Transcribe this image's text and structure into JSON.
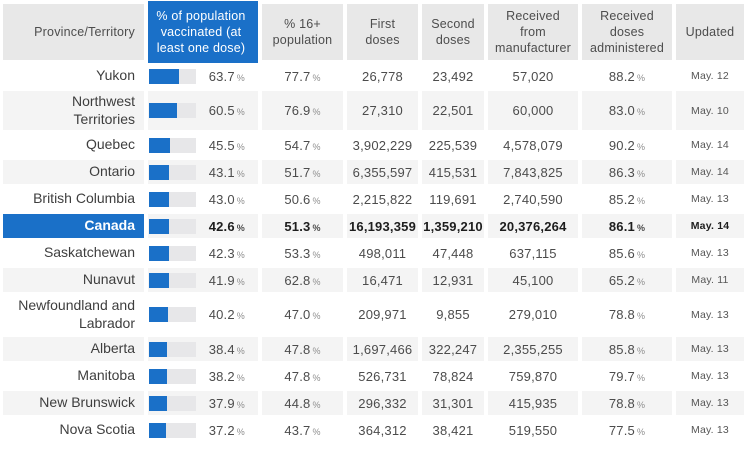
{
  "percent_sign": "%",
  "colors": {
    "accent_blue": "#1a70c8",
    "header_bg": "#e8e8e8",
    "stripe_bg": "#f4f4f4",
    "bar_track": "#e7e7e9"
  },
  "chart_data": {
    "type": "table",
    "columns": [
      "Province/Territory",
      "% of population vaccinated (at least one dose)",
      "% 16+ population",
      "First doses",
      "Second doses",
      "Received from manufacturer",
      "Received doses administered",
      "Updated"
    ],
    "rows": [
      {
        "province": "Yukon",
        "pct_vaccinated": "63.7",
        "pct_16plus": "77.7",
        "first_doses": "26,778",
        "second_doses": "23,492",
        "received_from_manufacturer": "57,020",
        "pct_doses_administered": "88.2",
        "updated": "May. 12",
        "highlight": false
      },
      {
        "province": "Northwest Territories",
        "pct_vaccinated": "60.5",
        "pct_16plus": "76.9",
        "first_doses": "27,310",
        "second_doses": "22,501",
        "received_from_manufacturer": "60,000",
        "pct_doses_administered": "83.0",
        "updated": "May. 10",
        "highlight": false
      },
      {
        "province": "Quebec",
        "pct_vaccinated": "45.5",
        "pct_16plus": "54.7",
        "first_doses": "3,902,229",
        "second_doses": "225,539",
        "received_from_manufacturer": "4,578,079",
        "pct_doses_administered": "90.2",
        "updated": "May. 14",
        "highlight": false
      },
      {
        "province": "Ontario",
        "pct_vaccinated": "43.1",
        "pct_16plus": "51.7",
        "first_doses": "6,355,597",
        "second_doses": "415,531",
        "received_from_manufacturer": "7,843,825",
        "pct_doses_administered": "86.3",
        "updated": "May. 14",
        "highlight": false
      },
      {
        "province": "British Columbia",
        "pct_vaccinated": "43.0",
        "pct_16plus": "50.6",
        "first_doses": "2,215,822",
        "second_doses": "119,691",
        "received_from_manufacturer": "2,740,590",
        "pct_doses_administered": "85.2",
        "updated": "May. 13",
        "highlight": false
      },
      {
        "province": "Canada",
        "pct_vaccinated": "42.6",
        "pct_16plus": "51.3",
        "first_doses": "16,193,359",
        "second_doses": "1,359,210",
        "received_from_manufacturer": "20,376,264",
        "pct_doses_administered": "86.1",
        "updated": "May. 14",
        "highlight": true
      },
      {
        "province": "Saskatchewan",
        "pct_vaccinated": "42.3",
        "pct_16plus": "53.3",
        "first_doses": "498,011",
        "second_doses": "47,448",
        "received_from_manufacturer": "637,115",
        "pct_doses_administered": "85.6",
        "updated": "May. 13",
        "highlight": false
      },
      {
        "province": "Nunavut",
        "pct_vaccinated": "41.9",
        "pct_16plus": "62.8",
        "first_doses": "16,471",
        "second_doses": "12,931",
        "received_from_manufacturer": "45,100",
        "pct_doses_administered": "65.2",
        "updated": "May. 11",
        "highlight": false
      },
      {
        "province": "Newfoundland and Labrador",
        "pct_vaccinated": "40.2",
        "pct_16plus": "47.0",
        "first_doses": "209,971",
        "second_doses": "9,855",
        "received_from_manufacturer": "279,010",
        "pct_doses_administered": "78.8",
        "updated": "May. 13",
        "highlight": false
      },
      {
        "province": "Alberta",
        "pct_vaccinated": "38.4",
        "pct_16plus": "47.8",
        "first_doses": "1,697,466",
        "second_doses": "322,247",
        "received_from_manufacturer": "2,355,255",
        "pct_doses_administered": "85.8",
        "updated": "May. 13",
        "highlight": false
      },
      {
        "province": "Manitoba",
        "pct_vaccinated": "38.2",
        "pct_16plus": "47.8",
        "first_doses": "526,731",
        "second_doses": "78,824",
        "received_from_manufacturer": "759,870",
        "pct_doses_administered": "79.7",
        "updated": "May. 13",
        "highlight": false
      },
      {
        "province": "New Brunswick",
        "pct_vaccinated": "37.9",
        "pct_16plus": "44.8",
        "first_doses": "296,332",
        "second_doses": "31,301",
        "received_from_manufacturer": "415,935",
        "pct_doses_administered": "78.8",
        "updated": "May. 13",
        "highlight": false
      },
      {
        "province": "Nova Scotia",
        "pct_vaccinated": "37.2",
        "pct_16plus": "43.7",
        "first_doses": "364,312",
        "second_doses": "38,421",
        "received_from_manufacturer": "519,550",
        "pct_doses_administered": "77.5",
        "updated": "May. 13",
        "highlight": false
      }
    ]
  }
}
